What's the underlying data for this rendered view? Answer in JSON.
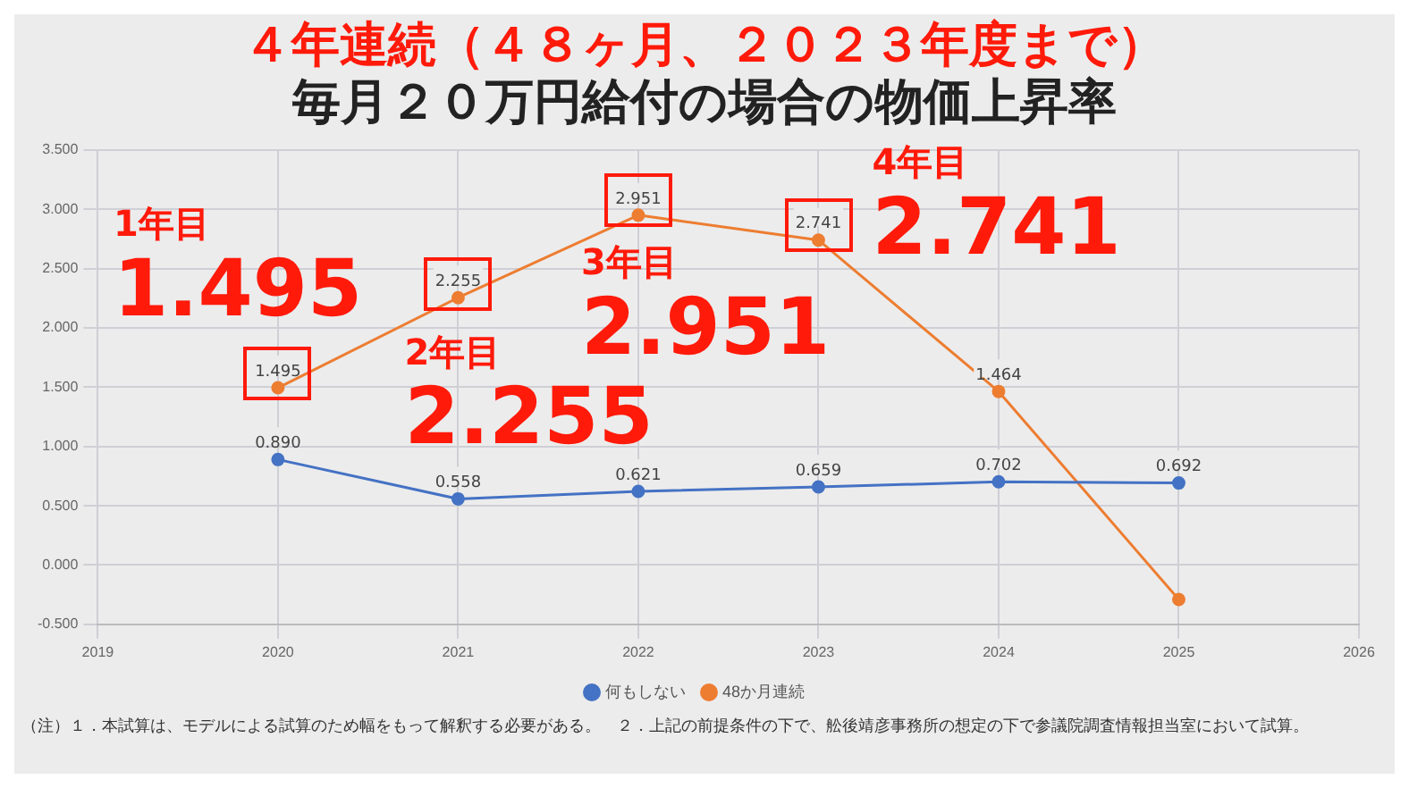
{
  "chart_data": {
    "type": "line",
    "title": "４年連続（４８ヶ月、２０２３年度まで）",
    "subtitle": "毎月２０万円給付の場合の物価上昇率",
    "x": [
      2020,
      2021,
      2022,
      2023,
      2024,
      2025
    ],
    "series": [
      {
        "name": "何もしない",
        "color": "#4472c4",
        "values": [
          0.89,
          0.558,
          0.621,
          0.659,
          0.702,
          0.692
        ],
        "value_labels": [
          "0.890",
          "0.558",
          "0.621",
          "0.659",
          "0.702",
          "0.692"
        ]
      },
      {
        "name": "48か月連続",
        "color": "#ed7d31",
        "values": [
          1.495,
          2.255,
          2.951,
          2.741,
          1.464,
          -0.29
        ],
        "value_labels": [
          "1.495",
          "2.255",
          "2.951",
          "2.741",
          "1.464",
          null
        ]
      }
    ],
    "xlim": [
      2019,
      2026
    ],
    "xticks": [
      2019,
      2020,
      2021,
      2022,
      2023,
      2024,
      2025,
      2026
    ],
    "ylim": [
      -0.5,
      3.5
    ],
    "yticks": [
      {
        "value": -0.5,
        "label": "-0.500"
      },
      {
        "value": 0,
        "label": "0.000"
      },
      {
        "value": 0.5,
        "label": "0.500"
      },
      {
        "value": 1,
        "label": "1.000"
      },
      {
        "value": 1.5,
        "label": "1.500"
      },
      {
        "value": 2,
        "label": "2.000"
      },
      {
        "value": 2.5,
        "label": "2.500"
      },
      {
        "value": 3,
        "label": "3.000"
      },
      {
        "value": 3.5,
        "label": "3.500"
      }
    ],
    "grid": true,
    "legend": "bottom",
    "marker": "circle",
    "line_style": "solid",
    "annotations": [
      {
        "text": "1年目\n1.495",
        "x": 2020,
        "y": 1.495
      },
      {
        "text": "2年目\n2.255",
        "x": 2021,
        "y": 2.255
      },
      {
        "text": "3年目\n2.951",
        "x": 2022,
        "y": 2.951
      },
      {
        "text": "4年目\n2.741",
        "x": 2023,
        "y": 2.741
      },
      "（注）１．本試算は、モデルによる試算のため幅をもって解釈する必要がある。　２．上記の前提条件の下で、舩後靖彦事務所の想定の下で参議院調査情報担当室において試算。"
    ]
  }
}
